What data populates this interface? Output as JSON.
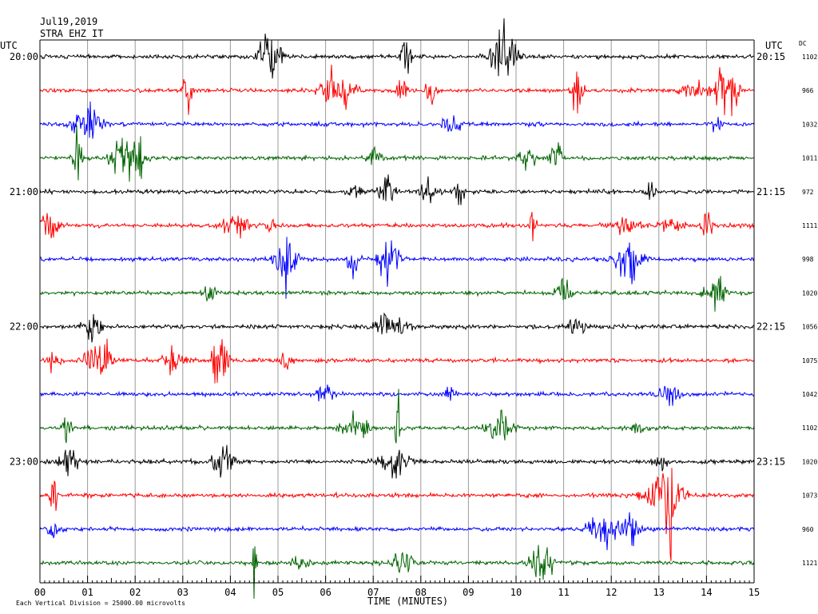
{
  "chart_data": {
    "type": "line",
    "title": "Jul19,2019",
    "subtitle": "STRA EHZ IT",
    "xlabel": "TIME (MINUTES)",
    "xlim": [
      0,
      15
    ],
    "x_ticks": [
      "00",
      "01",
      "02",
      "03",
      "04",
      "05",
      "06",
      "07",
      "08",
      "09",
      "10",
      "11",
      "12",
      "13",
      "14",
      "15"
    ],
    "left_axis_title": "UTC",
    "right_axis_title": "UTC",
    "dc_header": "DC",
    "left_hour_labels": [
      {
        "row": 0,
        "text": "20:00"
      },
      {
        "row": 4,
        "text": "21:00"
      },
      {
        "row": 8,
        "text": "22:00"
      },
      {
        "row": 12,
        "text": "23:00"
      }
    ],
    "right_hour_labels": [
      {
        "row": 0,
        "text": "20:15"
      },
      {
        "row": 4,
        "text": "21:15"
      },
      {
        "row": 8,
        "text": "22:15"
      },
      {
        "row": 12,
        "text": "23:15"
      }
    ],
    "series_colors": [
      "#000000",
      "#ff0000",
      "#0000ff",
      "#006400"
    ],
    "traces_dc": [
      "1102",
      "966",
      "1032",
      "1011",
      "972",
      "1111",
      "998",
      "1020",
      "1056",
      "1075",
      "1042",
      "1102",
      "1020",
      "1073",
      "960",
      "1121"
    ],
    "footnote": "Each Vertical Division = 25000.00 microvolts",
    "grid": true
  }
}
